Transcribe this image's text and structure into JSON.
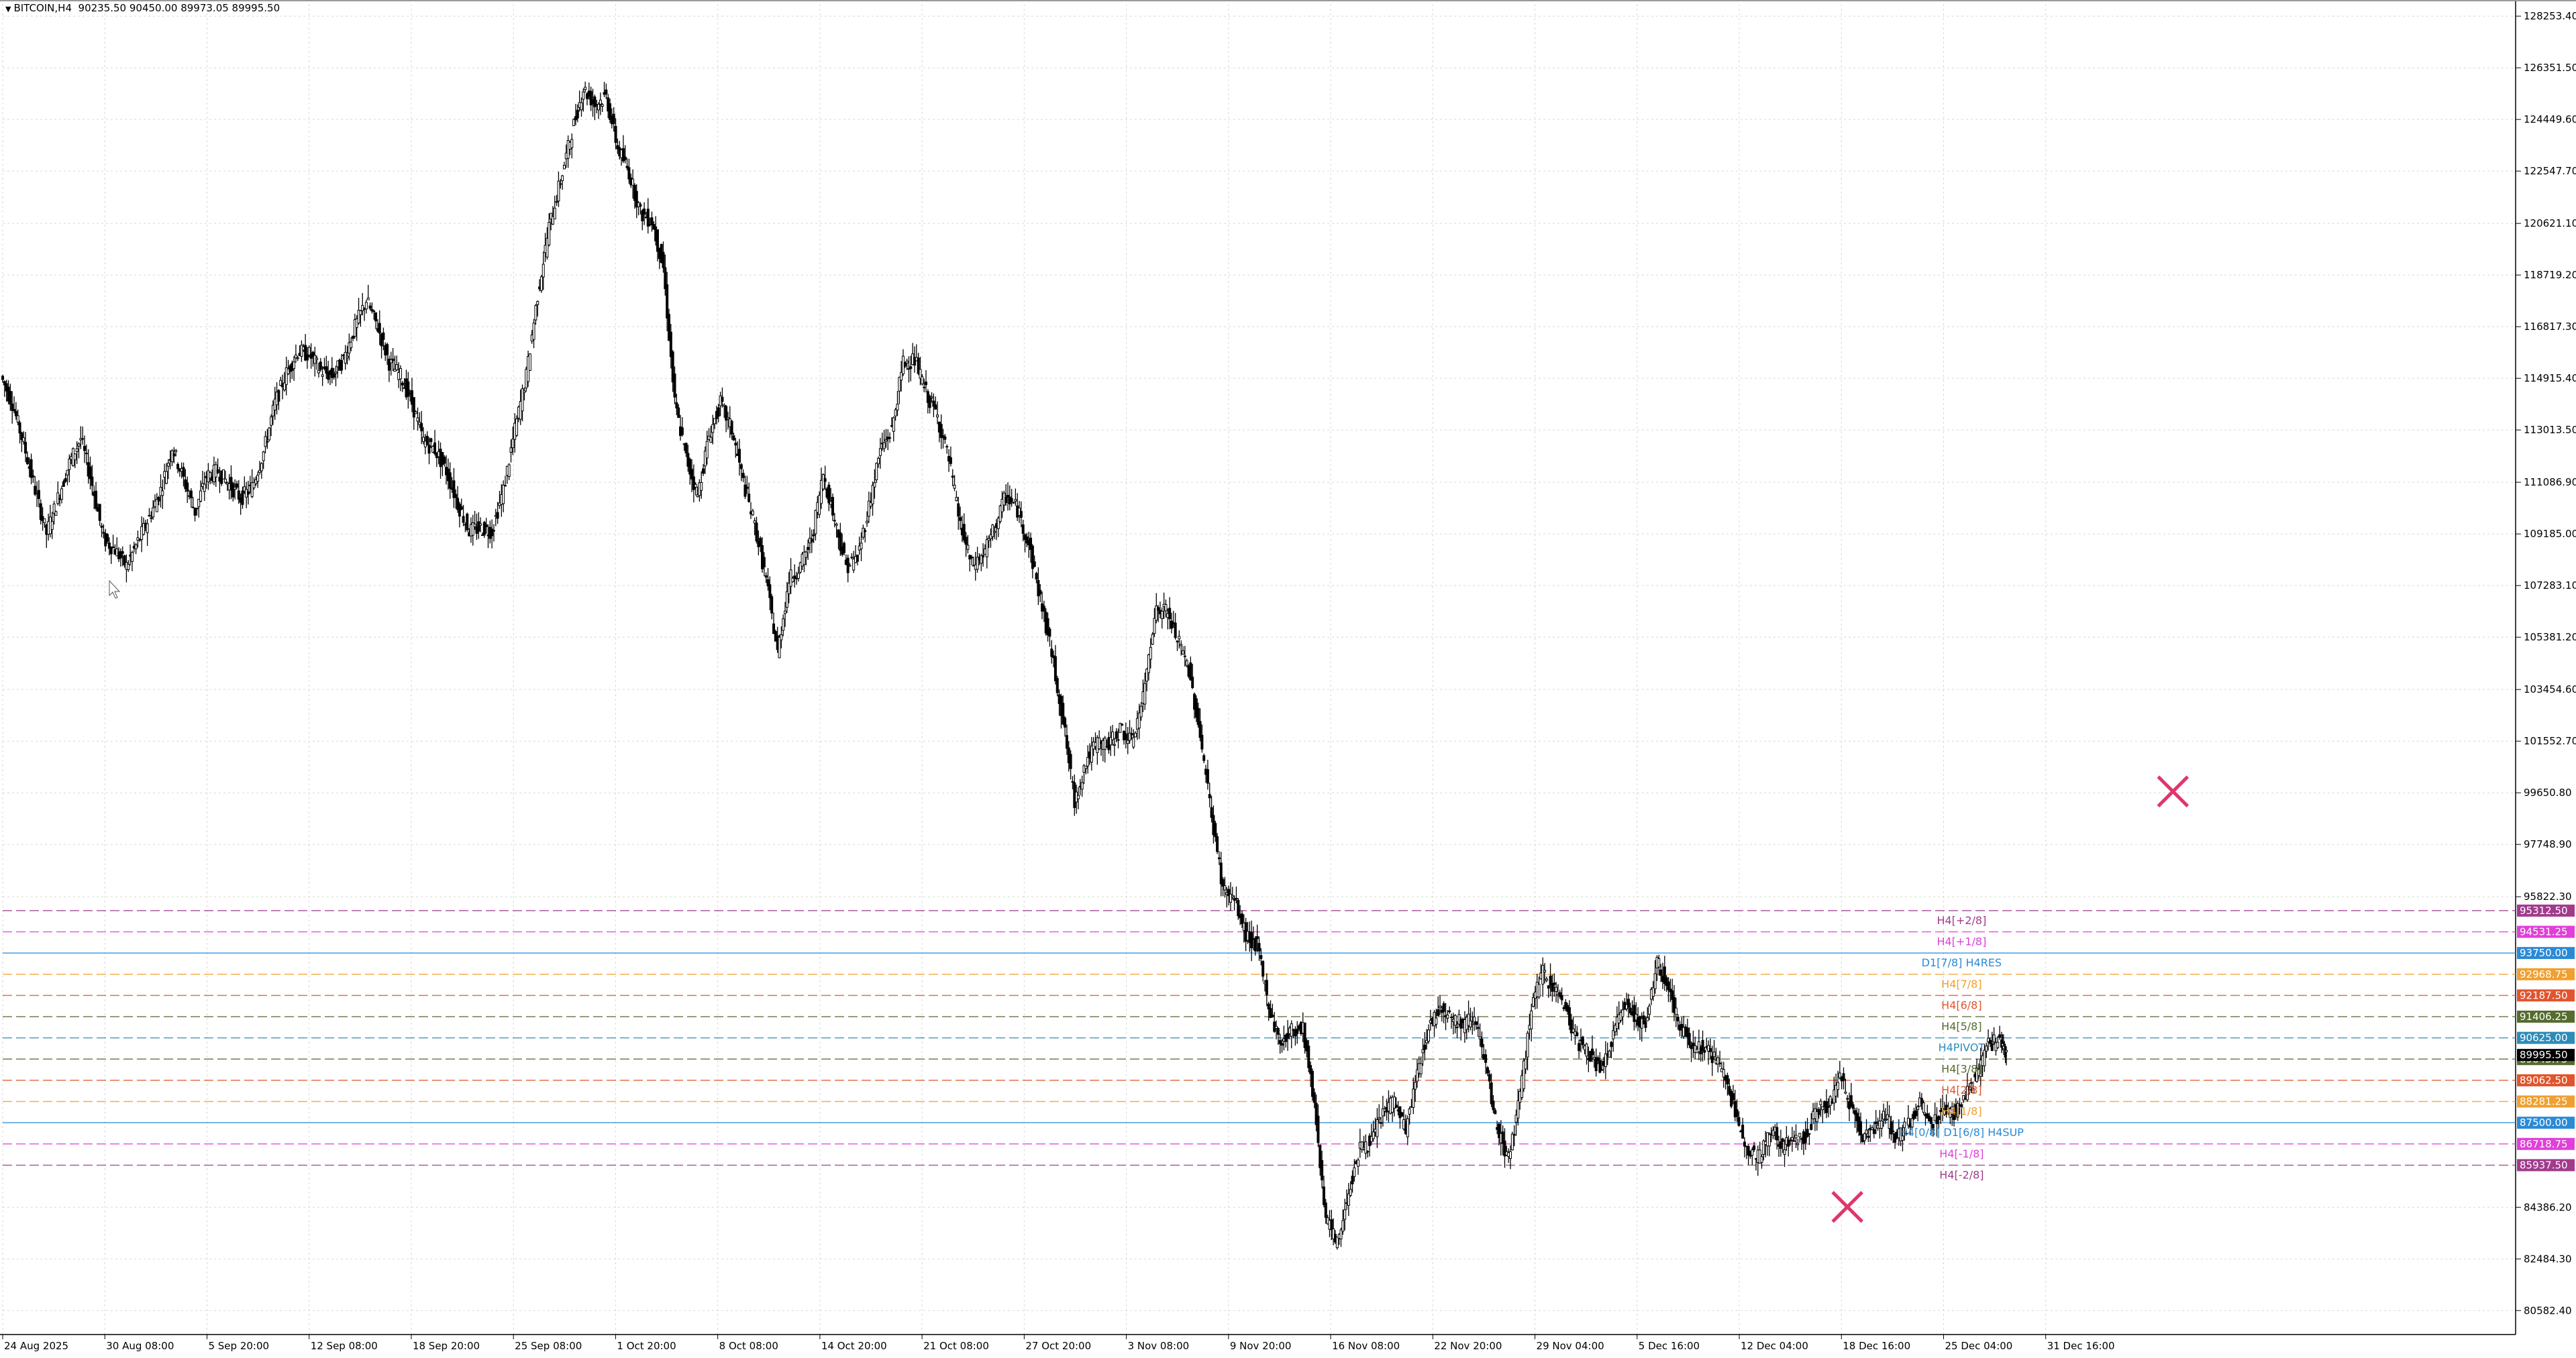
{
  "header": {
    "symbol_timeframe": "BITCOIN,H4",
    "ohlc": "90235.50 90450.00 89973.05 89995.50"
  },
  "colors": {
    "background": "#ffffff",
    "grid": "#d8d8d8",
    "candle": "#000000",
    "axis_text": "#000000",
    "marker": "#e0356b"
  },
  "chart_data": {
    "type": "candlestick",
    "title": "",
    "xlabel": "",
    "ylabel": "",
    "grid": true,
    "ylim": [
      79700,
      128700
    ],
    "y_ticks": [
      "128253.40",
      "126351.50",
      "124449.60",
      "122547.70",
      "120621.10",
      "118719.20",
      "116817.30",
      "114915.40",
      "113013.50",
      "111086.90",
      "109185.00",
      "107283.10",
      "105381.20",
      "103454.60",
      "101552.70",
      "99650.80",
      "97748.90",
      "95822.30",
      "84386.20",
      "82484.30",
      "80582.40"
    ],
    "x_ticks": [
      "24 Aug 2025",
      "30 Aug 08:00",
      "5 Sep 20:00",
      "12 Sep 08:00",
      "18 Sep 20:00",
      "25 Sep 08:00",
      "1 Oct 20:00",
      "8 Oct 08:00",
      "14 Oct 20:00",
      "21 Oct 08:00",
      "27 Oct 20:00",
      "3 Nov 08:00",
      "9 Nov 20:00",
      "16 Nov 08:00",
      "22 Nov 20:00",
      "29 Nov 04:00",
      "5 Dec 16:00",
      "12 Dec 04:00",
      "18 Dec 16:00",
      "25 Dec 04:00",
      "31 Dec 16:00"
    ],
    "series": [
      {
        "values": [
          [
            0,
            115000
          ],
          [
            2,
            114000
          ],
          [
            4,
            112500
          ],
          [
            6,
            110800
          ],
          [
            8,
            109200
          ],
          [
            10,
            110500
          ],
          [
            12,
            111800
          ],
          [
            14,
            112700
          ],
          [
            16,
            111000
          ],
          [
            18,
            109000
          ],
          [
            20,
            108600
          ],
          [
            22,
            108000
          ],
          [
            24,
            108900
          ],
          [
            26,
            109800
          ],
          [
            28,
            110800
          ],
          [
            30,
            112400
          ],
          [
            32,
            111200
          ],
          [
            34,
            110000
          ],
          [
            36,
            111300
          ],
          [
            38,
            111500
          ],
          [
            40,
            111000
          ],
          [
            42,
            110500
          ],
          [
            44,
            110900
          ],
          [
            46,
            112200
          ],
          [
            48,
            114000
          ],
          [
            50,
            115100
          ],
          [
            52,
            115900
          ],
          [
            54,
            115800
          ],
          [
            56,
            115200
          ],
          [
            58,
            115000
          ],
          [
            60,
            115600
          ],
          [
            62,
            116800
          ],
          [
            64,
            117800
          ],
          [
            66,
            116800
          ],
          [
            68,
            115500
          ],
          [
            70,
            115000
          ],
          [
            72,
            114000
          ],
          [
            74,
            112600
          ],
          [
            76,
            112300
          ],
          [
            78,
            111500
          ],
          [
            80,
            110300
          ],
          [
            82,
            109300
          ],
          [
            84,
            109400
          ],
          [
            86,
            109300
          ],
          [
            88,
            110800
          ],
          [
            90,
            113000
          ],
          [
            92,
            115000
          ],
          [
            94,
            118000
          ],
          [
            96,
            120500
          ],
          [
            98,
            122200
          ],
          [
            100,
            124000
          ],
          [
            102,
            125600
          ],
          [
            104,
            125000
          ],
          [
            106,
            125300
          ],
          [
            108,
            123400
          ],
          [
            110,
            122500
          ],
          [
            112,
            121000
          ],
          [
            114,
            120700
          ],
          [
            116,
            119000
          ],
          [
            118,
            114000
          ],
          [
            120,
            112000
          ],
          [
            122,
            110600
          ],
          [
            124,
            112800
          ],
          [
            126,
            114000
          ],
          [
            128,
            113000
          ],
          [
            130,
            111100
          ],
          [
            132,
            109500
          ],
          [
            134,
            107500
          ],
          [
            136,
            104800
          ],
          [
            138,
            107500
          ],
          [
            140,
            108000
          ],
          [
            142,
            109000
          ],
          [
            144,
            111400
          ],
          [
            146,
            109700
          ],
          [
            148,
            108000
          ],
          [
            150,
            108300
          ],
          [
            152,
            110200
          ],
          [
            154,
            112300
          ],
          [
            156,
            113000
          ],
          [
            158,
            115500
          ],
          [
            160,
            115600
          ],
          [
            162,
            114400
          ],
          [
            164,
            113500
          ],
          [
            166,
            111900
          ],
          [
            168,
            109500
          ],
          [
            170,
            108000
          ],
          [
            172,
            108400
          ],
          [
            174,
            109400
          ],
          [
            176,
            110600
          ],
          [
            178,
            110100
          ],
          [
            180,
            108800
          ],
          [
            182,
            106800
          ],
          [
            184,
            104800
          ],
          [
            186,
            102300
          ],
          [
            188,
            99300
          ],
          [
            190,
            100800
          ],
          [
            192,
            101500
          ],
          [
            194,
            101400
          ],
          [
            196,
            102000
          ],
          [
            198,
            101500
          ],
          [
            200,
            103100
          ],
          [
            202,
            106300
          ],
          [
            204,
            106400
          ],
          [
            206,
            105300
          ],
          [
            208,
            104200
          ],
          [
            210,
            101800
          ],
          [
            212,
            98800
          ],
          [
            214,
            96100
          ],
          [
            216,
            95700
          ],
          [
            218,
            94400
          ],
          [
            220,
            94000
          ],
          [
            222,
            91800
          ],
          [
            224,
            90400
          ],
          [
            226,
            90900
          ],
          [
            228,
            91000
          ],
          [
            230,
            88200
          ],
          [
            232,
            84000
          ],
          [
            234,
            83000
          ],
          [
            236,
            85000
          ],
          [
            238,
            86600
          ],
          [
            240,
            86800
          ],
          [
            242,
            87900
          ],
          [
            244,
            88300
          ],
          [
            246,
            87200
          ],
          [
            248,
            89300
          ],
          [
            250,
            91000
          ],
          [
            252,
            91800
          ],
          [
            254,
            91400
          ],
          [
            256,
            91100
          ],
          [
            258,
            91500
          ],
          [
            260,
            89500
          ],
          [
            262,
            87200
          ],
          [
            264,
            86200
          ],
          [
            266,
            88400
          ],
          [
            268,
            91800
          ],
          [
            270,
            93000
          ],
          [
            272,
            92500
          ],
          [
            274,
            91700
          ],
          [
            276,
            90500
          ],
          [
            278,
            90100
          ],
          [
            280,
            89400
          ],
          [
            282,
            90400
          ],
          [
            284,
            91900
          ],
          [
            286,
            91500
          ],
          [
            288,
            91000
          ],
          [
            290,
            93400
          ],
          [
            292,
            92500
          ],
          [
            294,
            91000
          ],
          [
            296,
            90400
          ],
          [
            298,
            90300
          ],
          [
            300,
            89900
          ],
          [
            302,
            89200
          ],
          [
            304,
            87500
          ],
          [
            306,
            86600
          ],
          [
            308,
            86200
          ],
          [
            310,
            87300
          ],
          [
            312,
            86600
          ],
          [
            314,
            86900
          ],
          [
            316,
            87000
          ],
          [
            318,
            88000
          ],
          [
            320,
            88100
          ],
          [
            322,
            89200
          ],
          [
            324,
            88100
          ],
          [
            326,
            87000
          ],
          [
            328,
            87400
          ],
          [
            330,
            87700
          ],
          [
            332,
            86900
          ],
          [
            334,
            87400
          ],
          [
            336,
            88200
          ],
          [
            338,
            87400
          ],
          [
            340,
            88000
          ],
          [
            342,
            87900
          ],
          [
            344,
            88500
          ],
          [
            346,
            89300
          ],
          [
            348,
            90400
          ],
          [
            350,
            90500
          ],
          [
            351,
            89995
          ]
        ]
      }
    ],
    "levels": [
      {
        "label": "H4[+2/8]",
        "value": 95312.5,
        "price": "95312.50",
        "color": "#a13b8c"
      },
      {
        "label": "H4[+1/8]",
        "value": 94531.25,
        "price": "94531.25",
        "color": "#e040d8"
      },
      {
        "label": "D1[7/8] H4RES",
        "value": 93750.0,
        "price": "93750.00",
        "color": "#2b8ad6"
      },
      {
        "label": "H4[7/8]",
        "value": 92968.75,
        "price": "92968.75",
        "color": "#f0a030"
      },
      {
        "label": "H4[6/8]",
        "value": 92187.5,
        "price": "92187.50",
        "color": "#e0552e"
      },
      {
        "label": "H4[5/8]",
        "value": 91406.25,
        "price": "91406.25",
        "color": "#556b2f"
      },
      {
        "label": "H4PIVOT",
        "value": 90625.0,
        "price": "90625.00",
        "color": "#2e8bb8"
      },
      {
        "label": "H4[3/8]",
        "value": 89843.75,
        "price": "89843.75",
        "color": "#556b2f"
      },
      {
        "label": "H4[2/8]",
        "value": 89062.5,
        "price": "89062.50",
        "color": "#e0552e"
      },
      {
        "label": "H4[1/8]",
        "value": 88281.25,
        "price": "88281.25",
        "color": "#f0a030"
      },
      {
        "label": "H4[0/8] D1[6/8] H4SUP",
        "value": 87500.0,
        "price": "87500.00",
        "color": "#2b8ad6"
      },
      {
        "label": "H4[-1/8]",
        "value": 86718.75,
        "price": "86718.75",
        "color": "#e040d8"
      },
      {
        "label": "H4[-2/8]",
        "value": 85937.5,
        "price": "85937.50",
        "color": "#a13b8c"
      }
    ],
    "extra_price_tags": [
      {
        "price": "89995.50",
        "value": 89995.5,
        "color": "#000000"
      }
    ],
    "markers": [
      {
        "type": "cross",
        "x": 380,
        "value": 99700
      },
      {
        "type": "cross",
        "x": 323,
        "value": 84400
      }
    ],
    "x_range": [
      0,
      440
    ]
  }
}
